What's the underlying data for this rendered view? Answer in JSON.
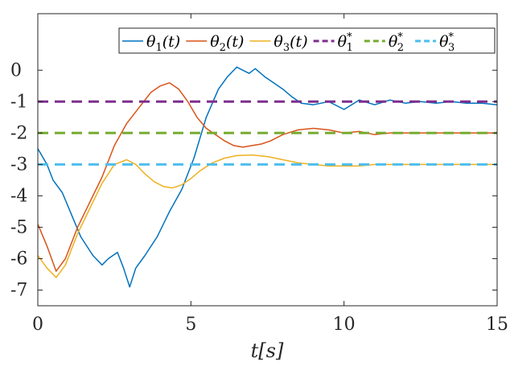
{
  "chart_data": {
    "type": "line",
    "title": "",
    "xlabel": "t[s]",
    "ylabel": "",
    "xlim": [
      0,
      15
    ],
    "ylim": [
      -7.5,
      1.8
    ],
    "xticks": [
      0,
      5,
      10,
      15
    ],
    "xtick_labels": [
      "0",
      "5",
      "10",
      "15"
    ],
    "yticks": [
      0,
      -1,
      -2,
      -3,
      -4,
      -5,
      -6,
      -7
    ],
    "ytick_labels": [
      "0",
      "-1",
      "-2",
      "-3",
      "-4",
      "-5",
      "-6",
      "-7"
    ],
    "grid": false,
    "legend_position": "top",
    "series": [
      {
        "name": "θ1(t)",
        "label_main": "θ",
        "label_sub": "1",
        "label_suffix": "(t)",
        "color": "#0072BD",
        "style": "solid",
        "x": [
          0,
          0.3,
          0.5,
          0.8,
          1.1,
          1.4,
          1.8,
          2.1,
          2.3,
          2.6,
          2.8,
          3.0,
          3.2,
          3.5,
          3.9,
          4.3,
          4.7,
          5.1,
          5.5,
          5.9,
          6.2,
          6.5,
          6.7,
          6.9,
          7.1,
          7.4,
          7.7,
          8.0,
          8.3,
          8.6,
          9.0,
          9.5,
          10.0,
          10.5,
          11.0,
          11.5,
          12.0,
          12.5,
          13.0,
          13.5,
          14.0,
          14.5,
          15.0
        ],
        "y": [
          -2.5,
          -3.0,
          -3.5,
          -3.9,
          -4.6,
          -5.3,
          -5.9,
          -6.2,
          -6.0,
          -5.8,
          -6.3,
          -6.9,
          -6.3,
          -5.9,
          -5.3,
          -4.5,
          -3.8,
          -2.8,
          -1.5,
          -0.6,
          -0.2,
          0.1,
          0.0,
          -0.1,
          0.05,
          -0.2,
          -0.4,
          -0.6,
          -0.85,
          -1.05,
          -1.1,
          -1.0,
          -1.25,
          -0.95,
          -1.1,
          -0.95,
          -1.05,
          -1.0,
          -1.05,
          -1.0,
          -1.05,
          -1.05,
          -1.1
        ]
      },
      {
        "name": "θ2(t)",
        "label_main": "θ",
        "label_sub": "2",
        "label_suffix": "(t)",
        "color": "#D95319",
        "style": "solid",
        "x": [
          0,
          0.3,
          0.6,
          0.9,
          1.3,
          1.7,
          2.1,
          2.5,
          2.9,
          3.3,
          3.7,
          4.0,
          4.3,
          4.6,
          4.9,
          5.2,
          5.5,
          5.8,
          6.1,
          6.4,
          6.7,
          7.0,
          7.3,
          7.6,
          8.0,
          8.5,
          9.0,
          9.5,
          10.0,
          10.5,
          11.0,
          11.5,
          12.0,
          12.5,
          13.0,
          13.5,
          14.0,
          14.5,
          15.0
        ],
        "y": [
          -4.9,
          -5.6,
          -6.4,
          -6.0,
          -5.0,
          -4.2,
          -3.4,
          -2.4,
          -1.7,
          -1.2,
          -0.7,
          -0.5,
          -0.4,
          -0.6,
          -1.0,
          -1.5,
          -1.85,
          -2.05,
          -2.25,
          -2.4,
          -2.45,
          -2.4,
          -2.35,
          -2.25,
          -2.05,
          -1.9,
          -1.85,
          -1.9,
          -2.0,
          -1.95,
          -2.05,
          -2.0,
          -2.0,
          -2.0,
          -2.0,
          -2.0,
          -2.0,
          -2.0,
          -2.0
        ]
      },
      {
        "name": "θ3(t)",
        "label_main": "θ",
        "label_sub": "3",
        "label_suffix": "(t)",
        "color": "#EDB120",
        "style": "solid",
        "x": [
          0,
          0.3,
          0.6,
          0.9,
          1.3,
          1.7,
          2.1,
          2.5,
          2.9,
          3.2,
          3.5,
          3.8,
          4.1,
          4.4,
          4.7,
          5.0,
          5.3,
          5.7,
          6.1,
          6.5,
          7.0,
          7.5,
          8.0,
          8.5,
          9.0,
          9.5,
          10.0,
          10.5,
          11.0,
          11.5,
          12.0,
          12.5,
          13.0,
          13.5,
          14.0,
          14.5,
          15.0
        ],
        "y": [
          -5.9,
          -6.3,
          -6.6,
          -6.2,
          -5.2,
          -4.4,
          -3.6,
          -3.0,
          -2.85,
          -3.0,
          -3.3,
          -3.55,
          -3.7,
          -3.75,
          -3.65,
          -3.45,
          -3.2,
          -2.95,
          -2.8,
          -2.72,
          -2.7,
          -2.75,
          -2.85,
          -2.95,
          -3.0,
          -3.05,
          -3.05,
          -3.05,
          -3.0,
          -3.0,
          -3.0,
          -3.0,
          -3.0,
          -3.0,
          -3.0,
          -3.0,
          -3.0
        ]
      },
      {
        "name": "θ1*",
        "label_main": "θ",
        "label_sub": "1",
        "label_sup": "*",
        "color": "#7E2F8E",
        "style": "dashed",
        "x": [
          0,
          15
        ],
        "y": [
          -1,
          -1
        ]
      },
      {
        "name": "θ2*",
        "label_main": "θ",
        "label_sub": "2",
        "label_sup": "*",
        "color": "#77AC30",
        "style": "dashed",
        "x": [
          0,
          15
        ],
        "y": [
          -2,
          -2
        ]
      },
      {
        "name": "θ3*",
        "label_main": "θ",
        "label_sub": "3",
        "label_sup": "*",
        "color": "#4DBEEE",
        "style": "dashed",
        "x": [
          0,
          15
        ],
        "y": [
          -3,
          -3
        ]
      }
    ]
  }
}
